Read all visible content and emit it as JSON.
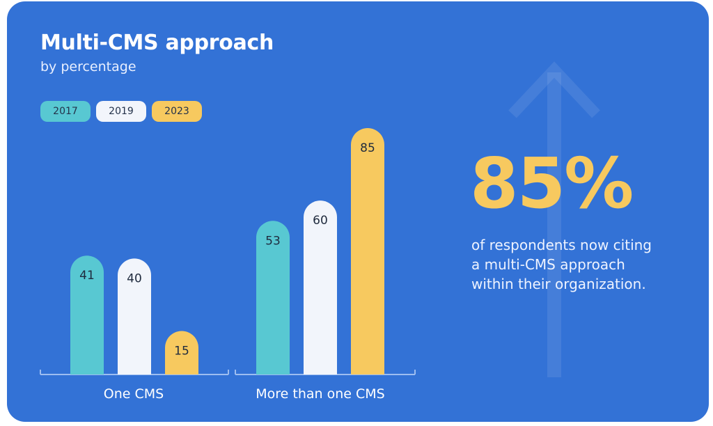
{
  "colors": {
    "background": "#3372d6",
    "teal": "#58c8d2",
    "white": "#f2f5fb",
    "yellow": "#f7c95f",
    "axis": "#9dbdf0"
  },
  "chart_data": {
    "type": "bar",
    "title": "Multi-CMS approach",
    "subtitle": "by percentage",
    "categories": [
      "One CMS",
      "More than one CMS"
    ],
    "series": [
      {
        "name": "2017",
        "values": [
          41,
          53
        ],
        "color": "#58c8d2"
      },
      {
        "name": "2019",
        "values": [
          40,
          60
        ],
        "color": "#f2f5fb"
      },
      {
        "name": "2023",
        "values": [
          15,
          85
        ],
        "color": "#f7c95f"
      }
    ],
    "ylim": [
      0,
      85
    ],
    "grid": false,
    "legend": "top-left",
    "xlabel": "",
    "ylabel": ""
  },
  "highlight": {
    "value": "85%",
    "caption_lines": [
      "of respondents now citing",
      "a multi-CMS approach",
      "within their organization."
    ],
    "decoration": "up-arrow-icon"
  }
}
